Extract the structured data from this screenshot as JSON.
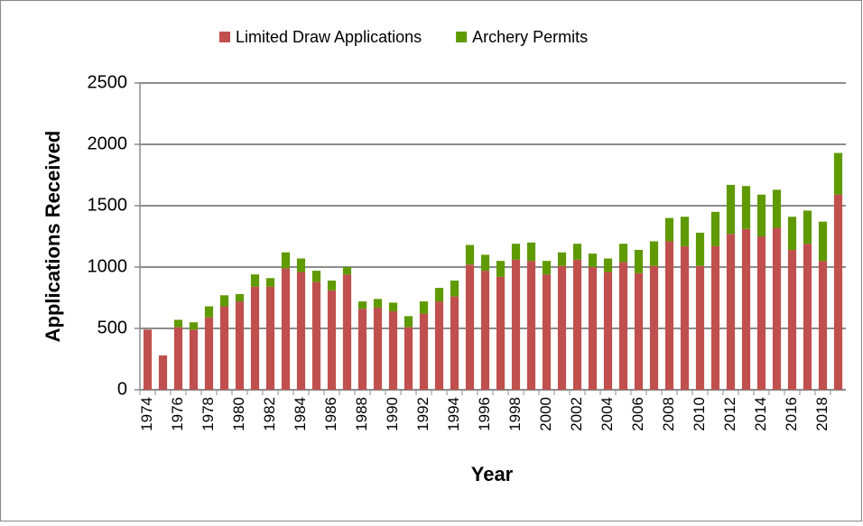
{
  "chart_data": {
    "type": "stacked-bar",
    "x_label": "Year",
    "y_label": "Applications Received",
    "categories": [
      "1974",
      null,
      "1976",
      null,
      "1978",
      null,
      "1980",
      null,
      "1982",
      null,
      "1984",
      null,
      "1986",
      null,
      "1988",
      null,
      "1990",
      null,
      "1992",
      null,
      "1994",
      null,
      "1996",
      null,
      "1998",
      null,
      "2000",
      null,
      "2002",
      null,
      "2004",
      null,
      "2006",
      null,
      "2008",
      null,
      "2010",
      null,
      "2012",
      null,
      "2014",
      null,
      "2016",
      null,
      "2018",
      null
    ],
    "series": [
      {
        "name": "Limited Draw Applications",
        "color": "#c0504d",
        "values": [
          490,
          280,
          510,
          490,
          590,
          680,
          720,
          840,
          840,
          990,
          960,
          880,
          810,
          940,
          660,
          670,
          640,
          510,
          620,
          720,
          760,
          1020,
          970,
          920,
          1060,
          1050,
          940,
          1010,
          1060,
          1000,
          960,
          1040,
          950,
          1010,
          1210,
          1170,
          1010,
          1170,
          1270,
          1310,
          1250,
          1320,
          1140,
          1190,
          1050,
          1590
        ]
      },
      {
        "name": "Archery Permits",
        "color": "#5f9a00",
        "values": [
          0,
          0,
          60,
          60,
          90,
          90,
          60,
          100,
          70,
          130,
          110,
          90,
          80,
          60,
          60,
          70,
          70,
          90,
          100,
          110,
          130,
          160,
          130,
          130,
          130,
          150,
          110,
          110,
          130,
          110,
          110,
          150,
          190,
          200,
          190,
          240,
          270,
          280,
          400,
          350,
          340,
          310,
          270,
          270,
          320,
          340
        ]
      }
    ],
    "ylim": [
      0,
      2500
    ],
    "yticks": [
      0,
      500,
      1000,
      1500,
      2000,
      2500
    ],
    "grid": true,
    "legend": "top"
  }
}
